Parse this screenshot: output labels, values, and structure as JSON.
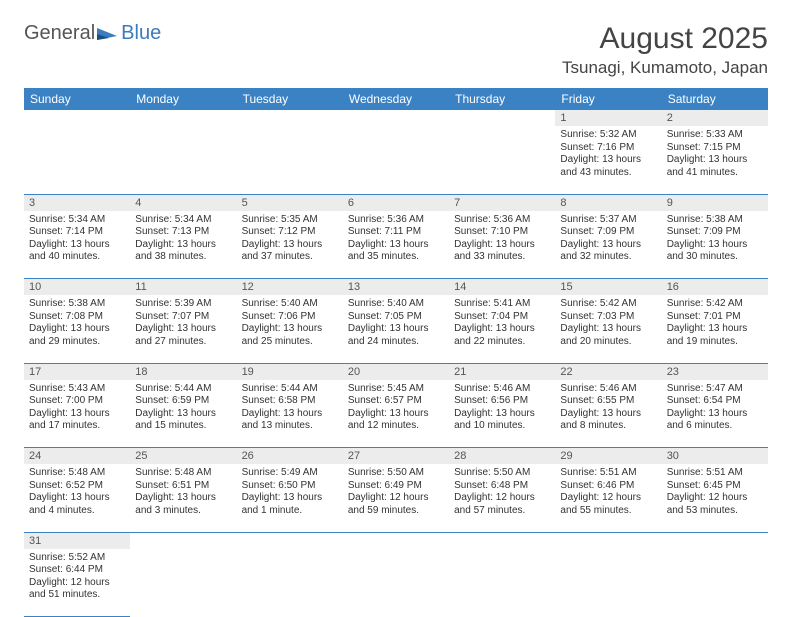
{
  "logo": {
    "textA": "General",
    "textB": "Blue"
  },
  "title": "August 2025",
  "location": "Tsunagi, Kumamoto, Japan",
  "dow": [
    "Sunday",
    "Monday",
    "Tuesday",
    "Wednesday",
    "Thursday",
    "Friday",
    "Saturday"
  ],
  "colors": {
    "headerBar": "#3b82c4",
    "dayNumBg": "#ececec",
    "text": "#333333",
    "logoGray": "#555555",
    "logoBlue": "#3b7bbf"
  },
  "weeks": [
    [
      null,
      null,
      null,
      null,
      null,
      {
        "n": "1",
        "sr": "Sunrise: 5:32 AM",
        "ss": "Sunset: 7:16 PM",
        "dl": "Daylight: 13 hours and 43 minutes."
      },
      {
        "n": "2",
        "sr": "Sunrise: 5:33 AM",
        "ss": "Sunset: 7:15 PM",
        "dl": "Daylight: 13 hours and 41 minutes."
      }
    ],
    [
      {
        "n": "3",
        "sr": "Sunrise: 5:34 AM",
        "ss": "Sunset: 7:14 PM",
        "dl": "Daylight: 13 hours and 40 minutes."
      },
      {
        "n": "4",
        "sr": "Sunrise: 5:34 AM",
        "ss": "Sunset: 7:13 PM",
        "dl": "Daylight: 13 hours and 38 minutes."
      },
      {
        "n": "5",
        "sr": "Sunrise: 5:35 AM",
        "ss": "Sunset: 7:12 PM",
        "dl": "Daylight: 13 hours and 37 minutes."
      },
      {
        "n": "6",
        "sr": "Sunrise: 5:36 AM",
        "ss": "Sunset: 7:11 PM",
        "dl": "Daylight: 13 hours and 35 minutes."
      },
      {
        "n": "7",
        "sr": "Sunrise: 5:36 AM",
        "ss": "Sunset: 7:10 PM",
        "dl": "Daylight: 13 hours and 33 minutes."
      },
      {
        "n": "8",
        "sr": "Sunrise: 5:37 AM",
        "ss": "Sunset: 7:09 PM",
        "dl": "Daylight: 13 hours and 32 minutes."
      },
      {
        "n": "9",
        "sr": "Sunrise: 5:38 AM",
        "ss": "Sunset: 7:09 PM",
        "dl": "Daylight: 13 hours and 30 minutes."
      }
    ],
    [
      {
        "n": "10",
        "sr": "Sunrise: 5:38 AM",
        "ss": "Sunset: 7:08 PM",
        "dl": "Daylight: 13 hours and 29 minutes."
      },
      {
        "n": "11",
        "sr": "Sunrise: 5:39 AM",
        "ss": "Sunset: 7:07 PM",
        "dl": "Daylight: 13 hours and 27 minutes."
      },
      {
        "n": "12",
        "sr": "Sunrise: 5:40 AM",
        "ss": "Sunset: 7:06 PM",
        "dl": "Daylight: 13 hours and 25 minutes."
      },
      {
        "n": "13",
        "sr": "Sunrise: 5:40 AM",
        "ss": "Sunset: 7:05 PM",
        "dl": "Daylight: 13 hours and 24 minutes."
      },
      {
        "n": "14",
        "sr": "Sunrise: 5:41 AM",
        "ss": "Sunset: 7:04 PM",
        "dl": "Daylight: 13 hours and 22 minutes."
      },
      {
        "n": "15",
        "sr": "Sunrise: 5:42 AM",
        "ss": "Sunset: 7:03 PM",
        "dl": "Daylight: 13 hours and 20 minutes."
      },
      {
        "n": "16",
        "sr": "Sunrise: 5:42 AM",
        "ss": "Sunset: 7:01 PM",
        "dl": "Daylight: 13 hours and 19 minutes."
      }
    ],
    [
      {
        "n": "17",
        "sr": "Sunrise: 5:43 AM",
        "ss": "Sunset: 7:00 PM",
        "dl": "Daylight: 13 hours and 17 minutes."
      },
      {
        "n": "18",
        "sr": "Sunrise: 5:44 AM",
        "ss": "Sunset: 6:59 PM",
        "dl": "Daylight: 13 hours and 15 minutes."
      },
      {
        "n": "19",
        "sr": "Sunrise: 5:44 AM",
        "ss": "Sunset: 6:58 PM",
        "dl": "Daylight: 13 hours and 13 minutes."
      },
      {
        "n": "20",
        "sr": "Sunrise: 5:45 AM",
        "ss": "Sunset: 6:57 PM",
        "dl": "Daylight: 13 hours and 12 minutes."
      },
      {
        "n": "21",
        "sr": "Sunrise: 5:46 AM",
        "ss": "Sunset: 6:56 PM",
        "dl": "Daylight: 13 hours and 10 minutes."
      },
      {
        "n": "22",
        "sr": "Sunrise: 5:46 AM",
        "ss": "Sunset: 6:55 PM",
        "dl": "Daylight: 13 hours and 8 minutes."
      },
      {
        "n": "23",
        "sr": "Sunrise: 5:47 AM",
        "ss": "Sunset: 6:54 PM",
        "dl": "Daylight: 13 hours and 6 minutes."
      }
    ],
    [
      {
        "n": "24",
        "sr": "Sunrise: 5:48 AM",
        "ss": "Sunset: 6:52 PM",
        "dl": "Daylight: 13 hours and 4 minutes."
      },
      {
        "n": "25",
        "sr": "Sunrise: 5:48 AM",
        "ss": "Sunset: 6:51 PM",
        "dl": "Daylight: 13 hours and 3 minutes."
      },
      {
        "n": "26",
        "sr": "Sunrise: 5:49 AM",
        "ss": "Sunset: 6:50 PM",
        "dl": "Daylight: 13 hours and 1 minute."
      },
      {
        "n": "27",
        "sr": "Sunrise: 5:50 AM",
        "ss": "Sunset: 6:49 PM",
        "dl": "Daylight: 12 hours and 59 minutes."
      },
      {
        "n": "28",
        "sr": "Sunrise: 5:50 AM",
        "ss": "Sunset: 6:48 PM",
        "dl": "Daylight: 12 hours and 57 minutes."
      },
      {
        "n": "29",
        "sr": "Sunrise: 5:51 AM",
        "ss": "Sunset: 6:46 PM",
        "dl": "Daylight: 12 hours and 55 minutes."
      },
      {
        "n": "30",
        "sr": "Sunrise: 5:51 AM",
        "ss": "Sunset: 6:45 PM",
        "dl": "Daylight: 12 hours and 53 minutes."
      }
    ],
    [
      {
        "n": "31",
        "sr": "Sunrise: 5:52 AM",
        "ss": "Sunset: 6:44 PM",
        "dl": "Daylight: 12 hours and 51 minutes."
      },
      null,
      null,
      null,
      null,
      null,
      null
    ]
  ]
}
